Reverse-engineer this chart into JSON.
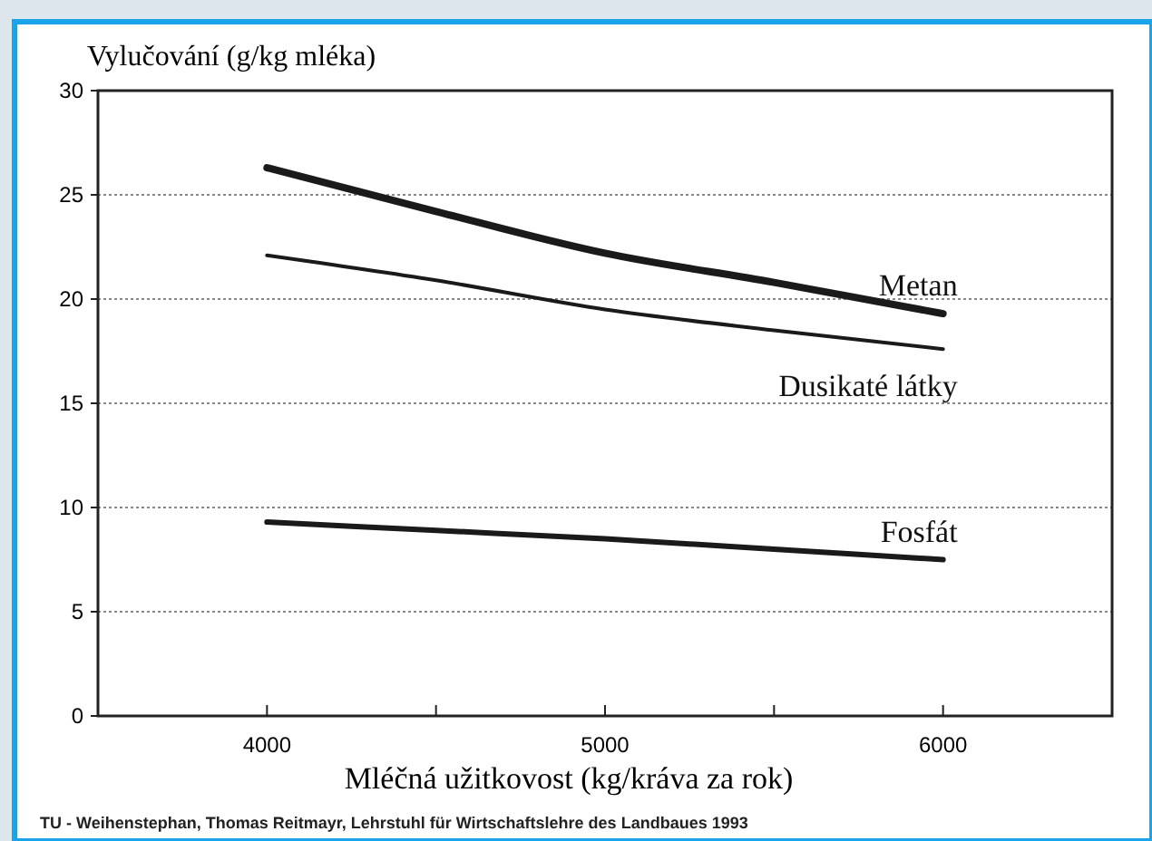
{
  "chart_data": {
    "type": "line",
    "ylabel": "Vylučování (g/kg mléka)",
    "xlabel": "Mléčná užitkovost (kg/kráva za rok)",
    "annotations": [
      "TU - Weihenstephan, Thomas Reitmayr, Lehrstuhl für Wirtschaftslehre des Landbaues 1993"
    ],
    "x": [
      4000,
      4500,
      5000,
      5500,
      6000
    ],
    "series": [
      {
        "name": "Metan",
        "color": "#1a1a1a",
        "values": [
          26.3,
          24.2,
          22.2,
          20.8,
          19.3
        ]
      },
      {
        "name": "Dusikaté látky",
        "color": "#1a1a1a",
        "values": [
          22.1,
          20.9,
          19.5,
          18.5,
          17.6
        ]
      },
      {
        "name": "Fosfát",
        "color": "#1a1a1a",
        "values": [
          9.3,
          8.9,
          8.5,
          8.0,
          7.5
        ]
      }
    ],
    "xlim": [
      3500,
      6500
    ],
    "xticks": [
      4000,
      {
        "value": 4500,
        "label": null
      },
      5000,
      {
        "value": 5500,
        "label": null
      },
      6000
    ],
    "ylim": [
      0,
      30
    ],
    "yticks": [
      0,
      5,
      10,
      15,
      20,
      25,
      30
    ],
    "grid": "y",
    "marker": "none",
    "line_style": "solid"
  }
}
